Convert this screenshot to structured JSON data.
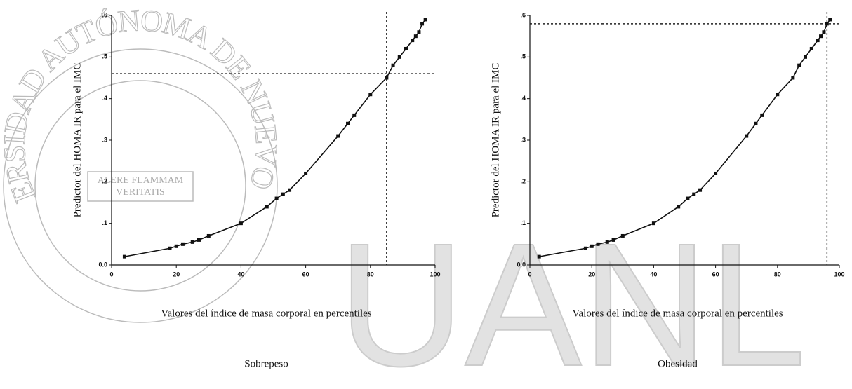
{
  "chart_data": [
    {
      "type": "line",
      "y_label": "Predictor del HOMA IR para el IMC",
      "x_label": "Valores del índice de masa corporal en percentiles",
      "caption": "Sobrepeso",
      "x": [
        4,
        18,
        20,
        22,
        25,
        27,
        30,
        40,
        48,
        51,
        53,
        55,
        60,
        70,
        73,
        75,
        80,
        85,
        87,
        89,
        91,
        93,
        94,
        95,
        96,
        97
      ],
      "values": [
        0.02,
        0.04,
        0.045,
        0.05,
        0.055,
        0.06,
        0.07,
        0.1,
        0.14,
        0.16,
        0.17,
        0.18,
        0.22,
        0.31,
        0.34,
        0.36,
        0.41,
        0.45,
        0.48,
        0.5,
        0.52,
        0.54,
        0.55,
        0.56,
        0.58,
        0.59
      ],
      "color": "#111111",
      "xlim": [
        0,
        100
      ],
      "ylim": [
        0,
        0.6
      ],
      "xticks": [
        0,
        20,
        40,
        60,
        80,
        100
      ],
      "yticks": [
        {
          "value": 0,
          "label": "0.0"
        },
        {
          "value": 0.1,
          "label": ".1"
        },
        {
          "value": 0.2,
          "label": ".2"
        },
        {
          "value": 0.3,
          "label": ".3"
        },
        {
          "value": 0.4,
          "label": ".4"
        },
        {
          "value": 0.5,
          "label": ".5"
        },
        {
          "value": 0.6,
          "label": ".6"
        }
      ],
      "reference_lines": {
        "x": 85,
        "y": 0.46
      }
    },
    {
      "type": "line",
      "y_label": "Predictor del HOMA IR para el IMC",
      "x_label": "Valores del índice de masa corporal en percentiles",
      "caption": "Obesidad",
      "x": [
        3,
        18,
        20,
        22,
        25,
        27,
        30,
        40,
        48,
        51,
        53,
        55,
        60,
        70,
        73,
        75,
        80,
        85,
        87,
        89,
        91,
        93,
        94,
        95,
        96,
        97
      ],
      "values": [
        0.02,
        0.04,
        0.045,
        0.05,
        0.055,
        0.06,
        0.07,
        0.1,
        0.14,
        0.16,
        0.17,
        0.18,
        0.22,
        0.31,
        0.34,
        0.36,
        0.41,
        0.45,
        0.48,
        0.5,
        0.52,
        0.54,
        0.55,
        0.56,
        0.58,
        0.59
      ],
      "color": "#111111",
      "xlim": [
        0,
        100
      ],
      "ylim": [
        0,
        0.6
      ],
      "xticks": [
        0,
        20,
        40,
        60,
        80,
        100
      ],
      "yticks": [
        {
          "value": 0,
          "label": "0.0"
        },
        {
          "value": 0.1,
          "label": ".1"
        },
        {
          "value": 0.2,
          "label": ".2"
        },
        {
          "value": 0.3,
          "label": ".3"
        },
        {
          "value": 0.4,
          "label": ".4"
        },
        {
          "value": 0.5,
          "label": ".5"
        },
        {
          "value": 0.6,
          "label": ".6"
        }
      ],
      "reference_lines": {
        "x": 96,
        "y": 0.58
      }
    }
  ],
  "watermark": {
    "logo": "UANL",
    "seal": "UNIVERSIDAD AUTÓNOMA DE NUEVO LEÓN",
    "motto_1": "ALERE FLAMMAM",
    "motto_2": "VERITATIS"
  }
}
